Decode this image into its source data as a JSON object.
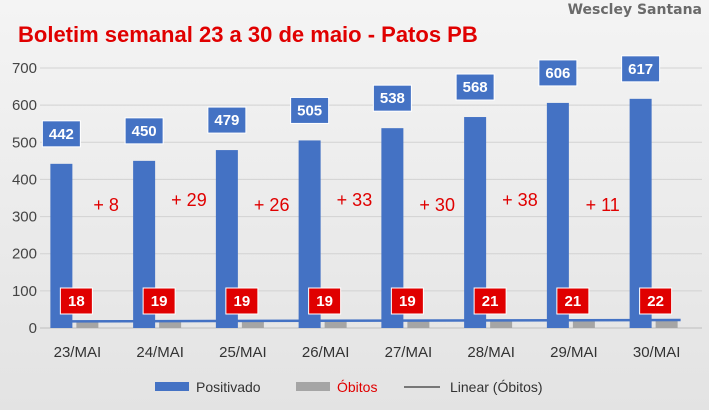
{
  "header": {
    "title": "Boletim semanal 23 a 30 de maio - Patos PB",
    "author": "Wescley Santana"
  },
  "chart_data": {
    "type": "bar",
    "categories": [
      "23/MAI",
      "24/MAI",
      "25/MAI",
      "26/MAI",
      "27/MAI",
      "28/MAI",
      "29/MAI",
      "30/MAI"
    ],
    "series": [
      {
        "name": "Positivado",
        "values": [
          442,
          450,
          479,
          505,
          538,
          568,
          606,
          617
        ],
        "color": "#4472c4"
      },
      {
        "name": "Óbitos",
        "values": [
          18,
          19,
          19,
          19,
          19,
          21,
          21,
          22
        ],
        "color": "#a5a5a5"
      },
      {
        "name": "Linear (Óbitos)",
        "type": "trendline",
        "color": "#4472c4"
      }
    ],
    "increments": [
      "+ 8",
      "+ 29",
      "+ 26",
      "+ 33",
      "+ 30",
      "+ 38",
      "+ 11"
    ],
    "yticks": [
      0,
      100,
      200,
      300,
      400,
      500,
      600,
      700
    ],
    "ylim": [
      0,
      700
    ],
    "grid": true,
    "legend": "bottom",
    "label_colors": {
      "positive_box": "#4472c4",
      "death_box": "#e00000",
      "increment_text": "#e00000"
    }
  }
}
